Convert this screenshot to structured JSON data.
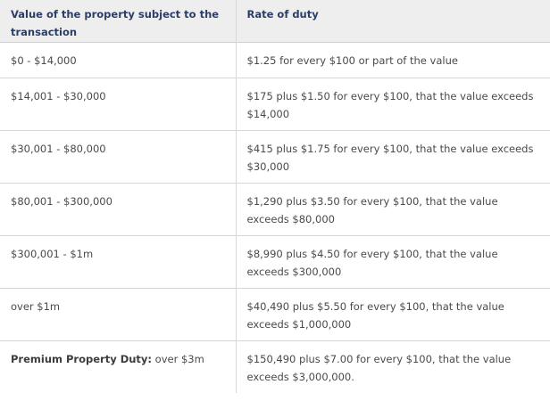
{
  "table": {
    "headers": [
      "Value of the property subject to the transaction",
      "Rate of duty"
    ],
    "rows": [
      {
        "value": "$0 - $14,000",
        "rate": "$1.25 for every $100 or part of the value"
      },
      {
        "value": "$14,001 - $30,000",
        "rate": "$175 plus $1.50 for every $100, that the value exceeds $14,000"
      },
      {
        "value": "$30,001 - $80,000",
        "rate": "$415 plus $1.75 for every $100, that the value exceeds $30,000"
      },
      {
        "value": "$80,001 - $300,000",
        "rate": "$1,290 plus $3.50 for every $100, that the value exceeds $80,000"
      },
      {
        "value": "$300,001 - $1m",
        "rate": "$8,990 plus $4.50 for every $100, that the value exceeds $300,000"
      },
      {
        "value": "over $1m",
        "rate": "$40,490 plus $5.50 for every $100, that the value exceeds $1,000,000"
      },
      {
        "value_label": "Premium Property Duty:",
        "value": " over $3m",
        "rate": "$150,490 plus $7.00 for every $100, that the value exceeds $3,000,000."
      }
    ]
  }
}
